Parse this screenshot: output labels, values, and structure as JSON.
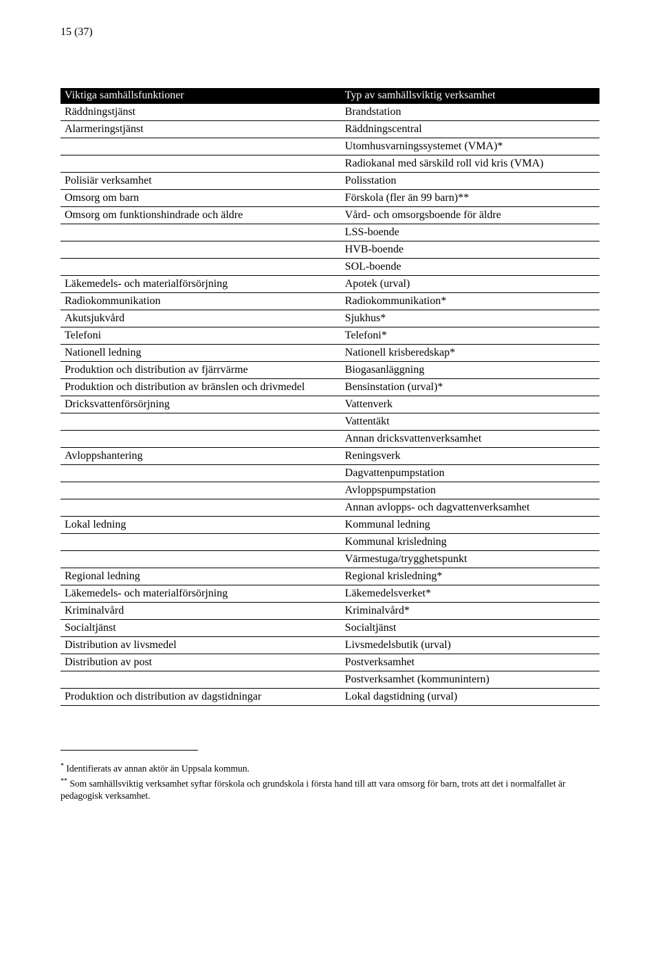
{
  "page_number": "15 (37)",
  "table": {
    "headers": {
      "left": "Viktiga samhällsfunktioner",
      "right": "Typ av samhällsviktig verksamhet"
    },
    "rows": [
      {
        "left": "Räddningstjänst",
        "right": "Brandstation"
      },
      {
        "left": "Alarmeringstjänst",
        "right": "Räddningscentral"
      },
      {
        "left": "",
        "right": "Utomhusvarningssystemet (VMA)*"
      },
      {
        "left": "",
        "right": "Radiokanal med särskild roll vid kris (VMA)"
      },
      {
        "left": "Polisiär verksamhet",
        "right": "Polisstation"
      },
      {
        "left": "Omsorg om barn",
        "right": "Förskola (fler än 99 barn)**"
      },
      {
        "left": "Omsorg om funktionshindrade och äldre",
        "right": "Vård- och omsorgsboende för äldre"
      },
      {
        "left": "",
        "right": "LSS-boende"
      },
      {
        "left": "",
        "right": "HVB-boende"
      },
      {
        "left": "",
        "right": "SOL-boende"
      },
      {
        "left": "Läkemedels- och materialförsörjning",
        "right": "Apotek (urval)"
      },
      {
        "left": "Radiokommunikation",
        "right": "Radiokommunikation*"
      },
      {
        "left": "Akutsjukvård",
        "right": "Sjukhus*"
      },
      {
        "left": "Telefoni",
        "right": "Telefoni*"
      },
      {
        "left": "Nationell ledning",
        "right": "Nationell krisberedskap*"
      },
      {
        "left": "Produktion och distribution av fjärrvärme",
        "right": "Biogasanläggning"
      },
      {
        "left": "Produktion och distribution av bränslen och drivmedel",
        "right": "Bensinstation (urval)*"
      },
      {
        "left": "Dricksvattenförsörjning",
        "right": "Vattenverk"
      },
      {
        "left": "",
        "right": "Vattentäkt"
      },
      {
        "left": "",
        "right": "Annan dricksvattenverksamhet"
      },
      {
        "left": "Avloppshantering",
        "right": "Reningsverk"
      },
      {
        "left": "",
        "right": "Dagvattenpumpstation"
      },
      {
        "left": "",
        "right": "Avloppspumpstation"
      },
      {
        "left": "",
        "right": "Annan avlopps- och dagvattenverksamhet"
      },
      {
        "left": "Lokal ledning",
        "right": "Kommunal ledning"
      },
      {
        "left": "",
        "right": "Kommunal krisledning"
      },
      {
        "left": "",
        "right": "Värmestuga/trygghetspunkt"
      },
      {
        "left": "Regional ledning",
        "right": "Regional krisledning*"
      },
      {
        "left": "Läkemedels- och materialförsörjning",
        "right": "Läkemedelsverket*"
      },
      {
        "left": "Kriminalvård",
        "right": "Kriminalvård*"
      },
      {
        "left": "Socialtjänst",
        "right": "Socialtjänst"
      },
      {
        "left": "Distribution av livsmedel",
        "right": "Livsmedelsbutik (urval)"
      },
      {
        "left": "Distribution av post",
        "right": "Postverksamhet"
      },
      {
        "left": "",
        "right": "Postverksamhet (kommunintern)"
      },
      {
        "left": "Produktion och distribution av dagstidningar",
        "right": "Lokal dagstidning (urval)"
      }
    ]
  },
  "footnotes": {
    "fn1_marker": "*",
    "fn1_text": " Identifierats av annan aktör än Uppsala kommun.",
    "fn2_marker": "**",
    "fn2_text": " Som samhällsviktig verksamhet syftar förskola och grundskola i första hand till att vara omsorg för barn, trots att det i normalfallet är pedagogisk verksamhet."
  },
  "style": {
    "background_color": "#ffffff",
    "text_color": "#000000",
    "header_bg": "#000000",
    "header_text_color": "#ffffff",
    "border_color": "#000000",
    "body_fontsize": 16,
    "footnote_fontsize": 13.5,
    "font_family": "Times New Roman"
  }
}
